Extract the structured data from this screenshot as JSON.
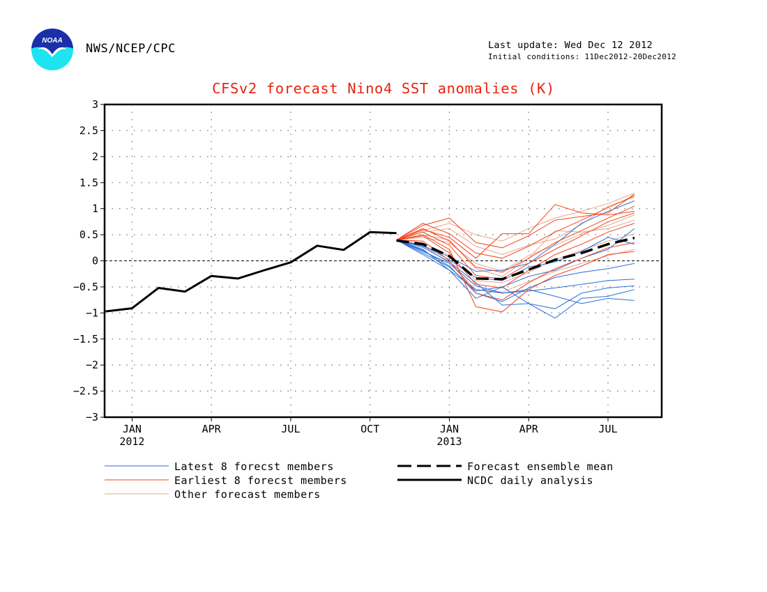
{
  "header": {
    "org": "NWS/NCEP/CPC",
    "last_update": "Last update: Wed Dec 12 2012",
    "initial_conditions": "Initial conditions: 11Dec2012-20Dec2012",
    "logo_text": "NOAA"
  },
  "chart_data": {
    "type": "line",
    "title": "CFSv2 forecast Nino4 SST anomalies (K)",
    "xlabel": "",
    "ylabel": "",
    "ylim": [
      -3,
      3
    ],
    "yticks": [
      "3",
      "2.5",
      "2",
      "1.5",
      "1",
      "0.5",
      "0",
      "−0.5",
      "−1",
      "−1.5",
      "−2",
      "−2.5",
      "−3"
    ],
    "xlim": [
      0,
      21
    ],
    "xticks": [
      {
        "x": 1,
        "label": "JAN",
        "sub": "2012"
      },
      {
        "x": 4,
        "label": "APR",
        "sub": ""
      },
      {
        "x": 7,
        "label": "JUL",
        "sub": ""
      },
      {
        "x": 10,
        "label": "OCT",
        "sub": ""
      },
      {
        "x": 13,
        "label": "JAN",
        "sub": "2013"
      },
      {
        "x": 16,
        "label": "APR",
        "sub": ""
      },
      {
        "x": 19,
        "label": "JUL",
        "sub": ""
      }
    ],
    "grid": true,
    "zero_line": true,
    "colors": {
      "latest": "#2b6fd6",
      "earliest": "#f2451c",
      "other": "#e9a58f",
      "mean": "#000000",
      "analysis": "#000000",
      "title": "#e8230d"
    },
    "analysis": {
      "name": "NCDC daily analysis",
      "x": [
        0,
        1,
        2,
        3,
        4,
        5,
        6,
        7,
        8,
        9,
        10,
        11
      ],
      "values": [
        -0.97,
        -0.91,
        -0.52,
        -0.59,
        -0.29,
        -0.34,
        -0.18,
        -0.03,
        0.29,
        0.21,
        0.55,
        0.53
      ]
    },
    "ensemble_mean": {
      "name": "Forecast ensemble mean",
      "x": [
        11,
        12,
        13,
        14,
        15,
        16,
        17,
        18,
        19,
        20
      ],
      "values": [
        0.39,
        0.32,
        0.09,
        -0.34,
        -0.35,
        -0.17,
        0.02,
        0.15,
        0.32,
        0.44
      ]
    },
    "members": {
      "x": [
        11,
        12,
        13,
        14,
        15,
        16,
        17,
        18,
        19,
        20
      ],
      "latest": [
        [
          0.4,
          0.12,
          -0.18,
          -0.55,
          -0.62,
          -0.58,
          -0.52,
          -0.45,
          -0.38,
          -0.35
        ],
        [
          0.4,
          0.18,
          -0.05,
          -0.48,
          -0.62,
          -0.55,
          -0.68,
          -0.82,
          -0.72,
          -0.76
        ],
        [
          0.4,
          0.2,
          -0.1,
          -0.62,
          -0.78,
          -0.52,
          -0.32,
          -0.22,
          -0.15,
          -0.05
        ],
        [
          0.4,
          0.26,
          -0.02,
          -0.42,
          -0.85,
          -0.82,
          -1.1,
          -0.72,
          -0.68,
          -0.55
        ],
        [
          0.4,
          0.3,
          0.02,
          -0.32,
          -0.38,
          -0.12,
          -0.02,
          0.18,
          0.45,
          0.32
        ],
        [
          0.4,
          0.22,
          -0.18,
          -0.72,
          -0.5,
          -0.3,
          -0.18,
          0.05,
          0.22,
          0.62
        ],
        [
          0.4,
          0.15,
          -0.12,
          -0.58,
          -0.5,
          -0.82,
          -0.92,
          -0.62,
          -0.52,
          -0.48
        ],
        [
          0.4,
          0.28,
          0.08,
          -0.2,
          -0.18,
          -0.05,
          0.32,
          0.72,
          0.95,
          1.15
        ]
      ],
      "earliest": [
        [
          0.4,
          0.72,
          0.52,
          0.15,
          0.05,
          0.28,
          0.55,
          0.78,
          1.02,
          1.25
        ],
        [
          0.4,
          0.62,
          0.38,
          -0.12,
          -0.22,
          0.05,
          0.35,
          0.58,
          0.82,
          1.05
        ],
        [
          0.4,
          0.55,
          0.3,
          -0.28,
          -0.35,
          -0.05,
          0.22,
          0.48,
          0.75,
          0.92
        ],
        [
          0.4,
          0.48,
          0.15,
          -0.45,
          -0.52,
          -0.18,
          0.12,
          0.32,
          0.55,
          0.72
        ],
        [
          0.4,
          0.68,
          0.82,
          0.35,
          0.25,
          0.48,
          0.78,
          0.85,
          0.92,
          1.28
        ],
        [
          0.4,
          0.38,
          0.0,
          -0.62,
          -0.75,
          -0.42,
          -0.15,
          0.05,
          0.25,
          0.35
        ],
        [
          0.4,
          0.5,
          0.22,
          -0.88,
          -0.98,
          -0.55,
          -0.28,
          -0.1,
          0.12,
          0.18
        ],
        [
          0.4,
          0.6,
          0.45,
          0.05,
          0.52,
          0.52,
          1.08,
          0.92,
          0.88,
          0.95
        ]
      ],
      "other": [
        [
          0.4,
          0.55,
          0.62,
          0.28,
          0.12,
          0.3,
          0.42,
          0.7,
          1.05,
          1.22
        ],
        [
          0.4,
          0.45,
          0.35,
          -0.05,
          -0.2,
          0.1,
          0.3,
          0.52,
          0.68,
          0.88
        ],
        [
          0.4,
          0.35,
          0.1,
          -0.38,
          -0.42,
          -0.22,
          0.02,
          0.2,
          0.38,
          0.52
        ],
        [
          0.4,
          0.3,
          -0.05,
          -0.55,
          -0.6,
          -0.4,
          -0.2,
          -0.05,
          0.1,
          0.22
        ],
        [
          0.4,
          0.5,
          0.4,
          -0.15,
          -0.3,
          0.05,
          0.58,
          0.55,
          0.62,
          0.78
        ],
        [
          0.4,
          0.58,
          0.72,
          0.5,
          0.38,
          0.62,
          0.82,
          0.95,
          1.1,
          1.3
        ]
      ]
    },
    "legend": {
      "position": "bottom",
      "items": [
        {
          "label": "Latest 8 forecst members",
          "style": "latest"
        },
        {
          "label": "Earliest 8 forecst members",
          "style": "earliest"
        },
        {
          "label": "Other forecast members",
          "style": "other"
        },
        {
          "label": "Forecast ensemble mean",
          "style": "mean"
        },
        {
          "label": "NCDC daily analysis",
          "style": "analysis"
        }
      ]
    }
  }
}
